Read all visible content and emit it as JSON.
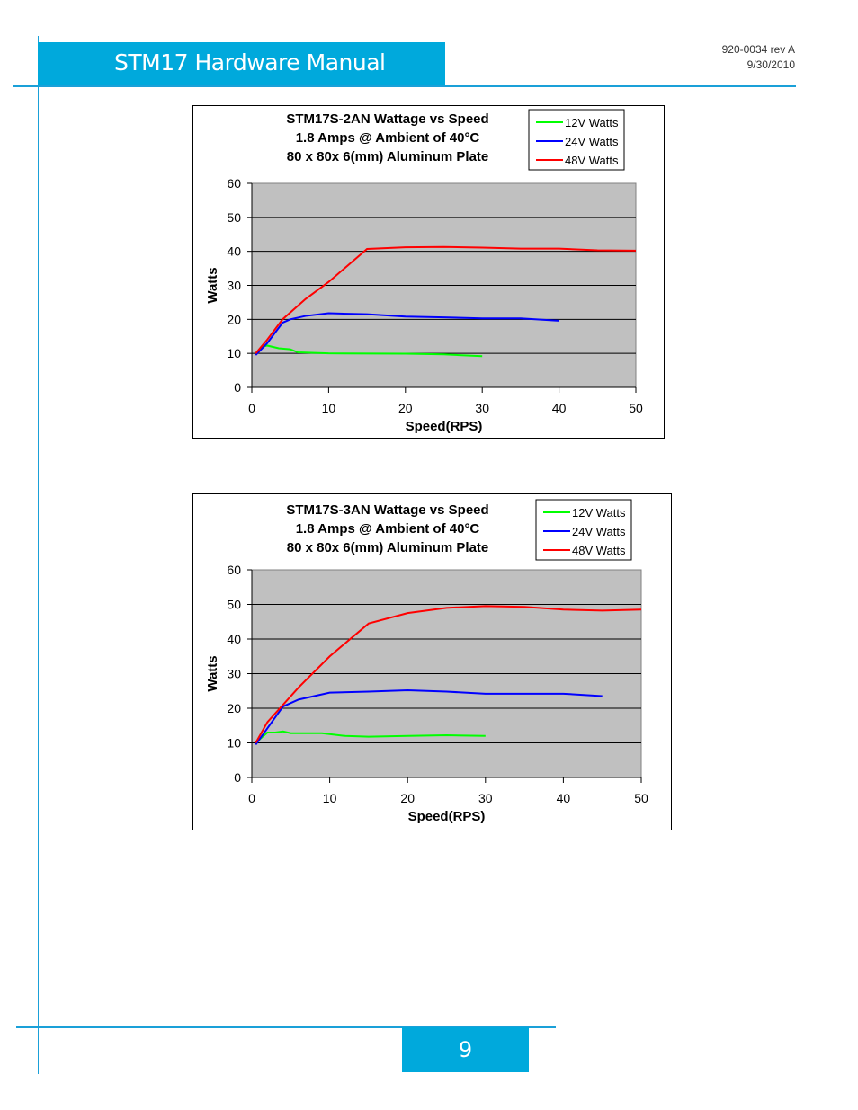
{
  "header": {
    "title": "STM17 Hardware Manual",
    "doc_number": "920-0034 rev A",
    "date": "9/30/2010"
  },
  "footer": {
    "page_number": "9"
  },
  "colors": {
    "accent": "#00a9dc",
    "plot_bg": "#c0c0c0",
    "series12": "#00ff00",
    "series24": "#0000ff",
    "series48": "#ff0000"
  },
  "chart_data": [
    {
      "type": "line",
      "title": [
        "STM17S-2AN  Wattage vs Speed",
        "1.8 Amps @ Ambient of 40°C",
        "80 x 80x 6(mm) Aluminum Plate"
      ],
      "xlabel": "Speed(RPS)",
      "ylabel": "Watts",
      "xlim": [
        0,
        50
      ],
      "ylim": [
        0,
        60
      ],
      "xticks": [
        "0",
        "10",
        "20",
        "30",
        "40",
        "50"
      ],
      "yticks": [
        "0",
        "10",
        "20",
        "30",
        "40",
        "50",
        "60"
      ],
      "grid": true,
      "legend": "top-right",
      "series": [
        {
          "name": "12V Watts",
          "color": "#00ff00",
          "points": [
            [
              0.5,
              10
            ],
            [
              1.5,
              12
            ],
            [
              2,
              12.3
            ],
            [
              3.5,
              11.5
            ],
            [
              5,
              11.2
            ],
            [
              6,
              10.3
            ],
            [
              10,
              10
            ],
            [
              20,
              9.9
            ],
            [
              25,
              9.7
            ],
            [
              30,
              9.2
            ]
          ]
        },
        {
          "name": "24V Watts",
          "color": "#0000ff",
          "points": [
            [
              0.5,
              9.5
            ],
            [
              2,
              13
            ],
            [
              4,
              19
            ],
            [
              5,
              20
            ],
            [
              7,
              21
            ],
            [
              10,
              21.8
            ],
            [
              15,
              21.5
            ],
            [
              20,
              20.8
            ],
            [
              25,
              20.6
            ],
            [
              30,
              20.3
            ],
            [
              35,
              20.3
            ],
            [
              40,
              19.6
            ]
          ]
        },
        {
          "name": "48V Watts",
          "color": "#ff0000",
          "points": [
            [
              0.5,
              10
            ],
            [
              2,
              14
            ],
            [
              4,
              20
            ],
            [
              7,
              26
            ],
            [
              10,
              31
            ],
            [
              15,
              40.7
            ],
            [
              20,
              41.2
            ],
            [
              25,
              41.3
            ],
            [
              30,
              41.1
            ],
            [
              35,
              40.8
            ],
            [
              40,
              40.8
            ],
            [
              45,
              40.3
            ],
            [
              50,
              40.2
            ]
          ]
        }
      ]
    },
    {
      "type": "line",
      "title": [
        "STM17S-3AN  Wattage vs Speed",
        "1.8 Amps @ Ambient of 40°C",
        "80 x 80x 6(mm) Aluminum Plate"
      ],
      "xlabel": "Speed(RPS)",
      "ylabel": "Watts",
      "xlim": [
        0,
        50
      ],
      "ylim": [
        0,
        60
      ],
      "xticks": [
        "0",
        "10",
        "20",
        "30",
        "40",
        "50"
      ],
      "yticks": [
        "0",
        "10",
        "20",
        "30",
        "40",
        "50",
        "60"
      ],
      "grid": true,
      "legend": "top-right",
      "series": [
        {
          "name": "12V Watts",
          "color": "#00ff00",
          "points": [
            [
              0.5,
              10
            ],
            [
              2,
              13
            ],
            [
              3,
              13
            ],
            [
              4,
              13.3
            ],
            [
              5,
              12.8
            ],
            [
              9,
              12.8
            ],
            [
              12,
              12
            ],
            [
              15,
              11.8
            ],
            [
              20,
              12
            ],
            [
              25,
              12.2
            ],
            [
              30,
              12
            ]
          ]
        },
        {
          "name": "24V Watts",
          "color": "#0000ff",
          "points": [
            [
              0.5,
              9.5
            ],
            [
              4,
              20.5
            ],
            [
              6,
              22.5
            ],
            [
              8,
              23.5
            ],
            [
              10,
              24.5
            ],
            [
              15,
              24.8
            ],
            [
              20,
              25.2
            ],
            [
              25,
              24.8
            ],
            [
              30,
              24.2
            ],
            [
              35,
              24.2
            ],
            [
              40,
              24.2
            ],
            [
              45,
              23.5
            ]
          ]
        },
        {
          "name": "48V Watts",
          "color": "#ff0000",
          "points": [
            [
              0.5,
              10
            ],
            [
              2,
              16
            ],
            [
              6,
              26
            ],
            [
              10,
              35
            ],
            [
              15,
              44.5
            ],
            [
              20,
              47.5
            ],
            [
              25,
              49
            ],
            [
              30,
              49.5
            ],
            [
              35,
              49.3
            ],
            [
              40,
              48.5
            ],
            [
              45,
              48.2
            ],
            [
              50,
              48.5
            ]
          ]
        }
      ]
    }
  ]
}
